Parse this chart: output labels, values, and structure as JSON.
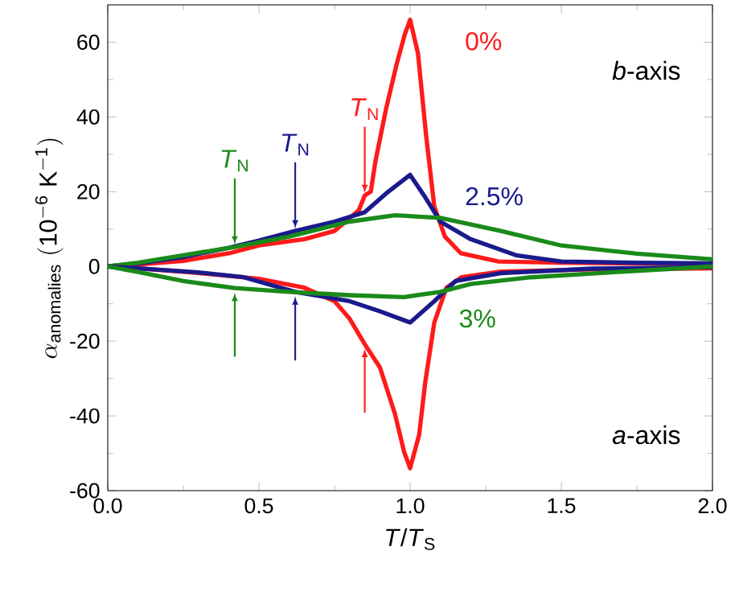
{
  "chart_data": {
    "type": "line",
    "xlabel": "*T*/*T*$_{S}$",
    "ylabel": "\\alpha_{\\mathrm{anomalies}}\\ \\mathrm{(10^{-6}\\ K^{-1})}",
    "xlim": [
      0,
      2
    ],
    "ylim": [
      -60,
      70
    ],
    "xticks": [
      {
        "value": 0,
        "label": "0.0"
      },
      {
        "value": 0.5,
        "label": "0.5"
      },
      {
        "value": 1,
        "label": "1.0"
      },
      {
        "value": 1.5,
        "label": "1.5"
      },
      {
        "value": 2,
        "label": "2.0"
      }
    ],
    "yticks": [
      -60,
      -40,
      -20,
      0,
      20,
      40,
      60
    ],
    "grid": false,
    "line_style": "solid",
    "series": [
      {
        "name": "0%",
        "color": "#ff1a1a",
        "x": [
          0,
          0.1,
          0.25,
          0.4,
          0.5,
          0.65,
          0.75,
          0.83,
          0.85,
          0.87,
          0.885,
          0.92,
          0.955,
          0.982,
          1.0,
          1.026,
          1.053,
          1.08,
          1.115,
          1.168,
          1.293,
          1.5,
          1.75,
          2.0
        ],
        "values": [
          0,
          0.5,
          1.5,
          3.5,
          5.6,
          7.3,
          9.5,
          15,
          19,
          20,
          28,
          42,
          54,
          62,
          66,
          57,
          35,
          16,
          8,
          3.5,
          1.3,
          1,
          0.8,
          0.6
        ]
      },
      {
        "name": "2.5%",
        "color": "#1a1a8c",
        "x": [
          0,
          0.1,
          0.25,
          0.4,
          0.5,
          0.62,
          0.75,
          0.85,
          0.92,
          1.0,
          1.05,
          1.1,
          1.2,
          1.35,
          1.5,
          1.75,
          2.0
        ],
        "values": [
          0,
          0.8,
          2.5,
          5,
          6.9,
          9.5,
          12,
          14.5,
          19.5,
          24.5,
          18.5,
          12,
          7.3,
          3,
          1.3,
          1,
          0.8
        ]
      },
      {
        "color": "#1a8a1a",
        "x": [
          0,
          0.1,
          0.25,
          0.42,
          0.6,
          0.8,
          0.95,
          1.1,
          1.3,
          1.5,
          1.75,
          2.0
        ],
        "values": [
          0,
          1,
          3,
          5.2,
          8,
          12,
          13.7,
          13,
          9.5,
          5.6,
          3.4,
          1.9
        ]
      },
      {
        "color": "#ff1a1a",
        "x": [
          0,
          0.1,
          0.25,
          0.5,
          0.65,
          0.75,
          0.8,
          0.85,
          0.9,
          0.95,
          0.98,
          1.0,
          1.03,
          1.05,
          1.08,
          1.12,
          1.17,
          1.3,
          1.6,
          2.0
        ],
        "values": [
          0,
          -0.5,
          -1.4,
          -3.3,
          -5.7,
          -9.3,
          -14,
          -20.8,
          -27,
          -39.5,
          -49.6,
          -54,
          -45,
          -31,
          -15,
          -5.7,
          -2.9,
          -1.4,
          -0.8,
          -0.5
        ]
      },
      {
        "color": "#1a1a8c",
        "x": [
          0,
          0.1,
          0.3,
          0.45,
          0.62,
          0.8,
          0.9,
          1.0,
          1.08,
          1.15,
          1.3,
          1.6,
          2.0
        ],
        "values": [
          0,
          -0.5,
          -1.6,
          -2.9,
          -6.8,
          -9.3,
          -12,
          -15,
          -9.3,
          -3.9,
          -1.8,
          -0.6,
          -0.2
        ]
      },
      {
        "name": "3%",
        "color": "#1a8a1a",
        "x": [
          0,
          0.1,
          0.25,
          0.42,
          0.6,
          0.8,
          0.98,
          1.1,
          1.2,
          1.4,
          1.7,
          2.0
        ],
        "values": [
          0,
          -1.5,
          -3.9,
          -5.8,
          -6.8,
          -7.7,
          -8.2,
          -6.8,
          -4.7,
          -2.9,
          -1.4,
          0
        ]
      }
    ],
    "annotations": [
      {
        "text": "*T*$_{N}$",
        "x": 0.42,
        "y": 5.2
      },
      {
        "text": "*T*$_{N}$",
        "x": 0.62,
        "y": 9.5
      },
      {
        "text": "*T*$_{N}$",
        "x": 0.85,
        "y": 19
      },
      "*b*-axis",
      "*a*-axis"
    ]
  }
}
